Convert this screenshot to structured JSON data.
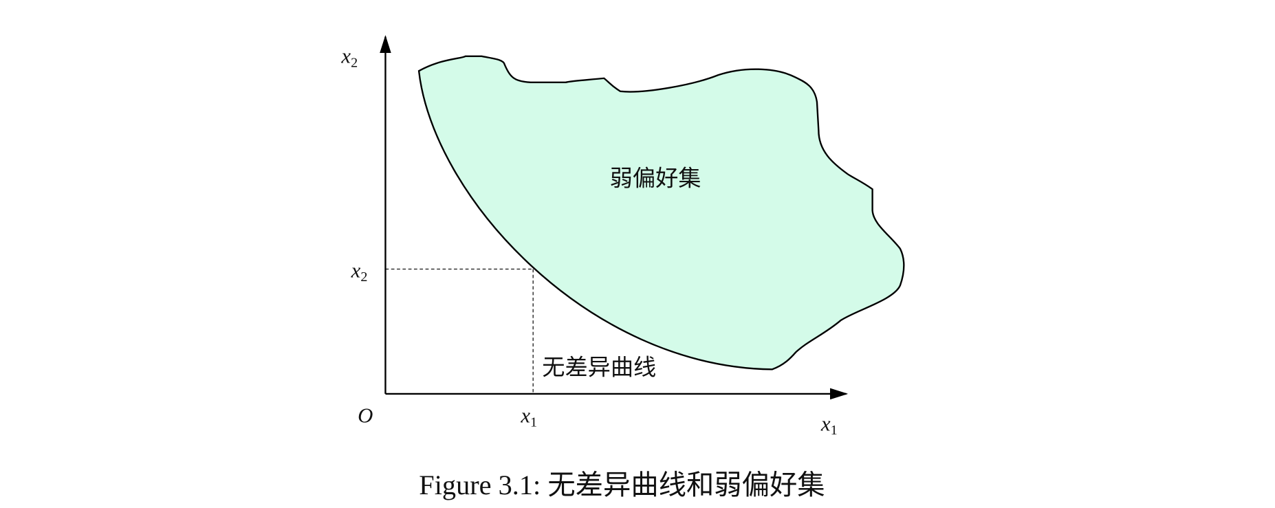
{
  "diagram": {
    "axis_y_label": {
      "var": "x",
      "sub": "2"
    },
    "tick_y_label": {
      "var": "x",
      "sub": "2"
    },
    "origin": "O",
    "tick_x_label": {
      "var": "x",
      "sub": "1"
    },
    "axis_x_label": {
      "var": "x",
      "sub": "1"
    },
    "region_label": "弱偏好集",
    "curve_label": "无差异曲线"
  },
  "caption": "Figure 3.1: 无差异曲线和弱偏好集"
}
